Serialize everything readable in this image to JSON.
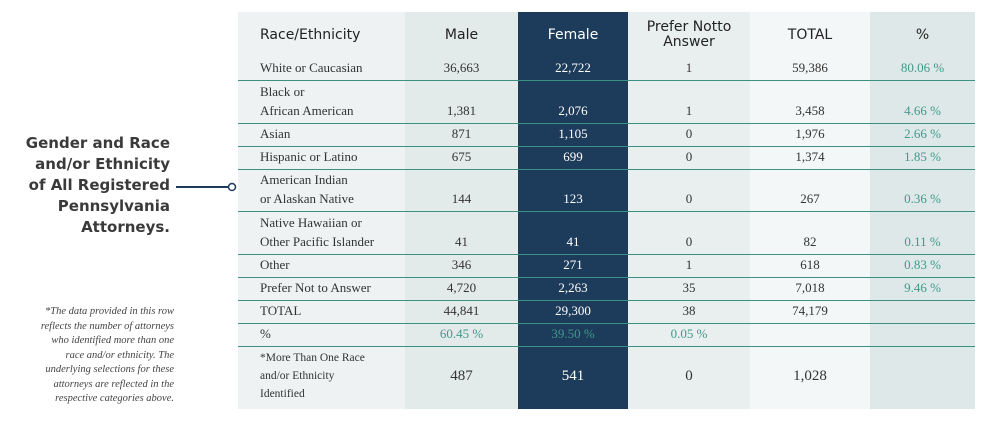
{
  "side": {
    "title_lines": [
      "Gender and Race",
      "and/or Ethnicity",
      "of All Registered",
      "Pennsylvania",
      "Attorneys."
    ],
    "footnote_lines": [
      "*The data provided in this row",
      "reflects the number of attorneys",
      "who identified more than one",
      "race and/or ethnicity. The",
      "underlying selections for these",
      "attorneys are reflected in the",
      "respective categories above."
    ]
  },
  "table": {
    "header": [
      [
        "Race/Ethnicity"
      ],
      [
        "Male"
      ],
      [
        "Female"
      ],
      [
        "Prefer Not",
        "to Answer"
      ],
      [
        "TOTAL"
      ],
      [
        "%"
      ]
    ],
    "rows": [
      {
        "label": [
          "White or Caucasian"
        ],
        "cells": [
          "36,663",
          "22,722",
          "1",
          "59,386",
          "80.06 %"
        ]
      },
      {
        "label": [
          "Black or",
          "African American"
        ],
        "cells": [
          "1,381",
          "2,076",
          "1",
          "3,458",
          "4.66 %"
        ]
      },
      {
        "label": [
          "Asian"
        ],
        "cells": [
          "871",
          "1,105",
          "0",
          "1,976",
          "2.66 %"
        ]
      },
      {
        "label": [
          "Hispanic or Latino"
        ],
        "cells": [
          "675",
          "699",
          "0",
          "1,374",
          "1.85 %"
        ]
      },
      {
        "label": [
          "American Indian",
          "or Alaskan Native"
        ],
        "cells": [
          "144",
          "123",
          "0",
          "267",
          "0.36 %"
        ]
      },
      {
        "label": [
          "Native Hawaiian or",
          "Other Pacific Islander"
        ],
        "cells": [
          "41",
          "41",
          "0",
          "82",
          "0.11 %"
        ]
      },
      {
        "label": [
          "Other"
        ],
        "cells": [
          "346",
          "271",
          "1",
          "618",
          "0.83 %"
        ]
      },
      {
        "label": [
          "Prefer Not to Answer"
        ],
        "cells": [
          "4,720",
          "2,263",
          "35",
          "7,018",
          "9.46 %"
        ]
      },
      {
        "label": [
          "TOTAL"
        ],
        "cells": [
          "44,841",
          "29,300",
          "38",
          "74,179",
          null
        ]
      },
      {
        "label": [
          "%"
        ],
        "cells": [
          "60.45 %",
          "39.50 %",
          "0.05 %",
          null,
          null
        ]
      },
      {
        "label": [
          "*More Than One Race",
          "and/or Ethnicity",
          "Identified"
        ],
        "cells": [
          "487",
          "541",
          "0",
          "1,028",
          null
        ]
      }
    ]
  }
}
